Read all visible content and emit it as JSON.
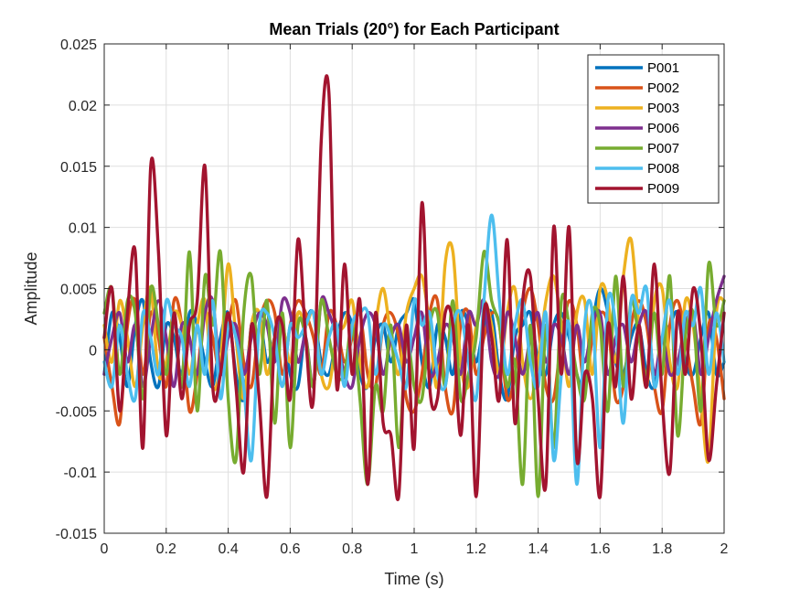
{
  "chart_data": {
    "type": "line",
    "title": "Mean Trials (20°) for Each Participant",
    "xlabel": "Time (s)",
    "ylabel": "Amplitude",
    "xlim": [
      0,
      2
    ],
    "ylim": [
      -0.015,
      0.025
    ],
    "x_ticks": [
      "0",
      "0.2",
      "0.4",
      "0.6",
      "0.8",
      "1",
      "1.2",
      "1.4",
      "1.6",
      "1.8",
      "2"
    ],
    "y_ticks": [
      "-0.015",
      "-0.01",
      "-0.005",
      "0",
      "0.005",
      "0.01",
      "0.015",
      "0.02",
      "0.025"
    ],
    "grid": true,
    "legend_position": "top-right",
    "x": [
      0,
      0.025,
      0.05,
      0.075,
      0.1,
      0.125,
      0.15,
      0.175,
      0.2,
      0.225,
      0.25,
      0.275,
      0.3,
      0.325,
      0.35,
      0.375,
      0.4,
      0.425,
      0.45,
      0.475,
      0.5,
      0.525,
      0.55,
      0.575,
      0.6,
      0.625,
      0.65,
      0.675,
      0.7,
      0.725,
      0.75,
      0.775,
      0.8,
      0.825,
      0.85,
      0.875,
      0.9,
      0.925,
      0.95,
      0.975,
      1,
      1.025,
      1.05,
      1.075,
      1.1,
      1.125,
      1.15,
      1.175,
      1.2,
      1.225,
      1.25,
      1.275,
      1.3,
      1.325,
      1.35,
      1.375,
      1.4,
      1.425,
      1.45,
      1.475,
      1.5,
      1.525,
      1.55,
      1.575,
      1.6,
      1.625,
      1.65,
      1.675,
      1.7,
      1.725,
      1.75,
      1.775,
      1.8,
      1.825,
      1.85,
      1.875,
      1.9,
      1.925,
      1.95,
      1.975,
      2
    ],
    "series": [
      {
        "name": "P001",
        "color": "#0072BD",
        "values": [
          -0.002,
          0.003,
          0.001,
          -0.003,
          0.002,
          0.004,
          -0.001,
          -0.003,
          0.002,
          0.001,
          -0.002,
          0.003,
          0.002,
          -0.001,
          -0.003,
          0.001,
          0.003,
          -0.002,
          -0.004,
          0.002,
          0.003,
          -0.001,
          0.001,
          0.002,
          -0.002,
          -0.003,
          0.002,
          0.003,
          -0.001,
          -0.002,
          0.001,
          0.003,
          0.002,
          -0.002,
          -0.003,
          0.001,
          0.002,
          -0.001,
          0.002,
          0.003,
          0.004,
          -0.001,
          -0.003,
          0.002,
          0.001,
          -0.002,
          0.003,
          0.002,
          -0.001,
          0.002,
          0.003,
          -0.002,
          -0.004,
          0.001,
          0.002,
          0.003,
          -0.001,
          -0.002,
          0.002,
          0.003,
          0.001,
          -0.002,
          -0.003,
          0.002,
          0.005,
          0.003,
          -0.001,
          -0.002,
          0.001,
          0.002,
          -0.002,
          -0.003,
          0.001,
          0.002,
          0.003,
          -0.001,
          -0.002,
          0.001,
          0.003,
          -0.002,
          -0.001
        ]
      },
      {
        "name": "P002",
        "color": "#D95319",
        "values": [
          0.001,
          -0.003,
          -0.006,
          0.002,
          0.004,
          -0.002,
          0.003,
          0.001,
          -0.003,
          0.004,
          0.002,
          -0.005,
          -0.002,
          0.003,
          0.001,
          -0.002,
          0.002,
          0.004,
          -0.001,
          -0.003,
          0.002,
          0.004,
          0.003,
          -0.002,
          0.002,
          0.004,
          0.003,
          0.001,
          -0.002,
          0.003,
          0.002,
          -0.001,
          0.001,
          0.003,
          -0.002,
          -0.003,
          0.002,
          0.003,
          0.001,
          -0.004,
          -0.005,
          -0.002,
          0.003,
          0.004,
          -0.003,
          -0.005,
          0.002,
          0.003,
          -0.002,
          0.001,
          0.003,
          0.002,
          -0.004,
          -0.002,
          0.003,
          0.005,
          0.002,
          -0.003,
          -0.004,
          0.001,
          0.004,
          0.002,
          -0.003,
          0.001,
          0.003,
          0.002,
          -0.004,
          -0.003,
          0.002,
          0.004,
          0.002,
          -0.003,
          -0.005,
          0.002,
          0.004,
          0.001,
          -0.003,
          -0.006,
          0.002,
          0.001,
          -0.004
        ]
      },
      {
        "name": "P003",
        "color": "#EDB120",
        "values": [
          0.002,
          -0.001,
          0.004,
          0.001,
          -0.003,
          0.002,
          0.005,
          -0.002,
          -0.001,
          0.003,
          0.002,
          -0.002,
          0.002,
          0.004,
          -0.003,
          -0.001,
          0.007,
          0.001,
          -0.004,
          0.002,
          0.003,
          -0.002,
          0.001,
          0.002,
          -0.001,
          0.003,
          0.002,
          0.003,
          -0.002,
          -0.003,
          0.001,
          0.002,
          0.004,
          -0.001,
          -0.003,
          0.002,
          0.005,
          0.001,
          -0.002,
          0.003,
          0.005,
          0.006,
          0.002,
          -0.003,
          0.007,
          0.008,
          -0.001,
          -0.003,
          0.002,
          0.004,
          0.002,
          -0.002,
          0.003,
          0.005,
          -0.001,
          -0.004,
          -0.001,
          0.004,
          0.006,
          0.002,
          -0.003,
          0.003,
          0.004,
          -0.002,
          0.005,
          0.004,
          -0.001,
          0.006,
          0.009,
          0.002,
          -0.003,
          0.004,
          0.005,
          -0.001,
          -0.003,
          0.004,
          0.002,
          -0.004,
          -0.009,
          0.003,
          0.004
        ]
      },
      {
        "name": "P006",
        "color": "#7E2F8E",
        "values": [
          -0.002,
          0.001,
          0.003,
          -0.001,
          0.002,
          -0.003,
          0.001,
          0.004,
          0.001,
          -0.003,
          0.002,
          0.001,
          -0.002,
          0.003,
          0.004,
          -0.002,
          0.001,
          0.002,
          -0.002,
          0.001,
          0.003,
          0.002,
          -0.001,
          0.004,
          0.003,
          -0.001,
          0.001,
          -0.003,
          0.004,
          0.003,
          0.001,
          -0.002,
          -0.003,
          0.001,
          0.003,
          0.002,
          -0.002,
          0.001,
          0.002,
          -0.001,
          0.001,
          0.003,
          -0.002,
          -0.001,
          0.002,
          0.001,
          -0.002,
          0.003,
          0.002,
          0.004,
          -0.001,
          -0.002,
          0.003,
          0.001,
          -0.002,
          0.001,
          0.003,
          -0.001,
          0.002,
          0.001,
          -0.002,
          0.002,
          -0.001,
          0.002,
          0.003,
          -0.002,
          0.001,
          0.002,
          -0.001,
          0.002,
          0.003,
          -0.002,
          0.001,
          -0.002,
          -0.001,
          0.002,
          0.003,
          -0.002,
          0.001,
          0.004,
          0.006
        ]
      },
      {
        "name": "P007",
        "color": "#77AC30",
        "values": [
          0.003,
          0.005,
          -0.002,
          0.004,
          0.003,
          -0.004,
          0.005,
          0.002,
          -0.002,
          0.003,
          -0.003,
          0.008,
          -0.005,
          0.006,
          0.002,
          0.008,
          -0.004,
          -0.009,
          0.003,
          0.006,
          -0.002,
          0.004,
          -0.006,
          0.003,
          -0.008,
          0.002,
          0.001,
          -0.003,
          0.004,
          0.001,
          -0.002,
          -0.002,
          0.002,
          -0.004,
          -0.011,
          -0.003,
          -0.005,
          0.002,
          -0.008,
          0.001,
          -0.003,
          -0.004,
          0.002,
          0.003,
          -0.003,
          0.004,
          -0.004,
          -0.002,
          0.001,
          0.008,
          0.004,
          0.002,
          -0.003,
          -0.001,
          -0.011,
          0.002,
          -0.012,
          0.002,
          -0.008,
          0.004,
          0.002,
          -0.002,
          -0.004,
          0.003,
          0.002,
          -0.005,
          0.006,
          -0.003,
          0.004,
          0.001,
          -0.002,
          0.003,
          -0.002,
          0.006,
          -0.007,
          0.001,
          0.003,
          -0.005,
          0.007,
          0.002,
          0.004
        ]
      },
      {
        "name": "P008",
        "color": "#4DBEEE",
        "values": [
          -0.001,
          -0.003,
          0.002,
          -0.002,
          -0.004,
          0.003,
          0.001,
          -0.002,
          0.004,
          0.002,
          0.001,
          -0.003,
          0.002,
          -0.002,
          0.004,
          -0.004,
          0.002,
          0.001,
          -0.003,
          -0.009,
          0.002,
          0.003,
          0.001,
          -0.003,
          0.002,
          0.001,
          0.002,
          0.003,
          -0.002,
          0.001,
          0.002,
          -0.003,
          0.002,
          0.003,
          0.003,
          -0.002,
          0.002,
          0.001,
          -0.001,
          -0.003,
          0.004,
          0.002,
          0.003,
          -0.002,
          -0.003,
          0.002,
          0.003,
          -0.001,
          -0.004,
          0.004,
          0.011,
          0.004,
          -0.002,
          0.002,
          0.004,
          -0.001,
          -0.003,
          0.003,
          -0.009,
          -0.002,
          0.002,
          -0.011,
          0.002,
          0.003,
          -0.008,
          0.004,
          0.002,
          -0.006,
          0.004,
          0.003,
          0.005,
          -0.003,
          0.001,
          0.004,
          -0.002,
          0.003,
          0.002,
          0.005,
          -0.002,
          0.003,
          -0.001
        ]
      },
      {
        "name": "P009",
        "color": "#A2142F",
        "values": [
          0.001,
          0.005,
          -0.005,
          0.003,
          0.008,
          -0.008,
          0.015,
          0.008,
          -0.007,
          0.003,
          -0.004,
          0.002,
          0.004,
          0.015,
          -0.003,
          -0.002,
          0.003,
          -0.003,
          -0.01,
          0.002,
          -0.004,
          -0.012,
          0.001,
          0.002,
          -0.004,
          0.009,
          0.001,
          -0.004,
          0.017,
          0.021,
          -0.003,
          0.007,
          -0.002,
          0.004,
          -0.011,
          0.003,
          -0.006,
          -0.007,
          -0.012,
          0.002,
          -0.008,
          0.012,
          -0.003,
          -0.004,
          0.003,
          0.002,
          -0.007,
          0.002,
          -0.012,
          0.003,
          0.001,
          -0.004,
          0.009,
          -0.006,
          0.004,
          0.006,
          -0.004,
          -0.011,
          0.01,
          -0.002,
          0.01,
          -0.009,
          -0.002,
          -0.004,
          -0.012,
          0.002,
          -0.003,
          0.006,
          -0.004,
          0.002,
          -0.003,
          0.007,
          -0.004,
          -0.01,
          0.003,
          -0.002,
          0.005,
          0.001,
          -0.009,
          -0.003,
          0.003
        ]
      }
    ]
  }
}
